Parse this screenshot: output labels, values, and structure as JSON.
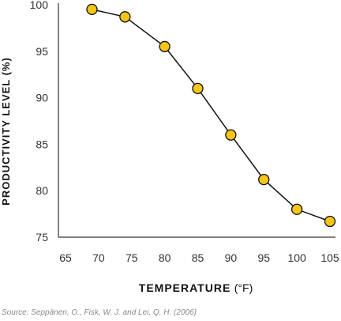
{
  "chart_data": {
    "type": "line",
    "title": "",
    "xlabel": "TEMPERATURE",
    "xlabel_unit": "(°F)",
    "ylabel": "PRODUCTIVITY LEVEL (%)",
    "xlim": [
      65,
      105
    ],
    "ylim": [
      75,
      100
    ],
    "x_ticks": [
      "65",
      "70",
      "75",
      "80",
      "85",
      "90",
      "95",
      "100",
      "105"
    ],
    "y_ticks": [
      "75",
      "80",
      "85",
      "90",
      "95",
      "100"
    ],
    "x": [
      69,
      74,
      80,
      85,
      90,
      95,
      100,
      105
    ],
    "series": [
      {
        "values": [
          99.5,
          98.7,
          95.5,
          91.0,
          86.0,
          81.2,
          78.0,
          76.7
        ]
      }
    ],
    "grid": false,
    "marker_color": "#f5c518",
    "line_color": "#111111"
  },
  "source": "Source: Seppänen, O., Fisk, W. J. and Lei, Q. H. (2006)"
}
